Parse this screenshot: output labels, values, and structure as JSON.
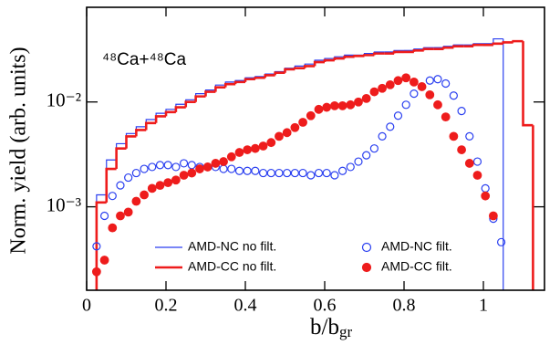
{
  "chart_data": {
    "type": "combo",
    "annotation": "⁴⁸Ca+⁴⁸Ca",
    "y_label": "Norm. yield (arb. units)",
    "x_label": "b/b",
    "x_label_sub": "gr",
    "xlim": [
      0,
      1.154
    ],
    "xticks": [
      0,
      0.2,
      0.4,
      0.6,
      0.8,
      1
    ],
    "ylim": [
      0.00016,
      0.08
    ],
    "log_y": true,
    "yticks": [
      {
        "value": 0.001,
        "label": "10⁻³"
      },
      {
        "value": 0.01,
        "label": "10⁻²"
      }
    ],
    "series": [
      {
        "name": "AMD-NC no filt.",
        "type": "step",
        "color": "#2a3ff0",
        "width": 1.2,
        "bins": [
          0.025,
          0.05,
          0.075,
          0.1,
          0.125,
          0.15,
          0.175,
          0.2,
          0.225,
          0.25,
          0.275,
          0.3,
          0.325,
          0.35,
          0.375,
          0.4,
          0.425,
          0.45,
          0.475,
          0.5,
          0.525,
          0.55,
          0.575,
          0.6,
          0.625,
          0.65,
          0.675,
          0.7,
          0.725,
          0.75,
          0.775,
          0.8,
          0.825,
          0.85,
          0.875,
          0.9,
          0.925,
          0.95,
          0.975,
          1.0,
          1.025,
          1.05
        ],
        "values": [
          0.0013,
          0.0028,
          0.004,
          0.005,
          0.0058,
          0.0068,
          0.0078,
          0.0085,
          0.0095,
          0.0105,
          0.012,
          0.013,
          0.0145,
          0.0155,
          0.016,
          0.017,
          0.0175,
          0.0185,
          0.0195,
          0.021,
          0.022,
          0.023,
          0.025,
          0.026,
          0.027,
          0.028,
          0.028,
          0.029,
          0.03,
          0.03,
          0.031,
          0.031,
          0.032,
          0.033,
          0.033,
          0.034,
          0.035,
          0.035,
          0.036,
          0.036,
          0.04
        ]
      },
      {
        "name": "AMD-CC no filt.",
        "type": "step",
        "color": "#ee1c1c",
        "width": 2.6,
        "bins": [
          0.025,
          0.05,
          0.075,
          0.1,
          0.125,
          0.15,
          0.175,
          0.2,
          0.225,
          0.25,
          0.275,
          0.3,
          0.325,
          0.35,
          0.375,
          0.4,
          0.425,
          0.45,
          0.475,
          0.5,
          0.525,
          0.55,
          0.575,
          0.6,
          0.625,
          0.65,
          0.675,
          0.7,
          0.725,
          0.75,
          0.775,
          0.8,
          0.825,
          0.85,
          0.875,
          0.9,
          0.925,
          0.95,
          0.975,
          1.0,
          1.025,
          1.05,
          1.075,
          1.1,
          1.125
        ],
        "values": [
          0.0011,
          0.0023,
          0.0036,
          0.0047,
          0.0054,
          0.0063,
          0.0073,
          0.008,
          0.0089,
          0.01,
          0.0113,
          0.0125,
          0.0138,
          0.0148,
          0.0155,
          0.0165,
          0.017,
          0.018,
          0.019,
          0.0205,
          0.021,
          0.022,
          0.024,
          0.025,
          0.026,
          0.027,
          0.0275,
          0.028,
          0.029,
          0.029,
          0.03,
          0.03,
          0.031,
          0.032,
          0.032,
          0.033,
          0.034,
          0.034,
          0.035,
          0.035,
          0.036,
          0.037,
          0.038,
          0.006
        ]
      },
      {
        "name": "AMD-NC filt.",
        "type": "scatter",
        "marker": "open",
        "color": "#2a3ff0",
        "x": [
          0.025,
          0.045,
          0.065,
          0.085,
          0.105,
          0.125,
          0.145,
          0.165,
          0.185,
          0.205,
          0.225,
          0.245,
          0.265,
          0.285,
          0.305,
          0.325,
          0.345,
          0.365,
          0.385,
          0.405,
          0.425,
          0.445,
          0.465,
          0.485,
          0.505,
          0.525,
          0.545,
          0.565,
          0.585,
          0.605,
          0.625,
          0.645,
          0.665,
          0.685,
          0.705,
          0.725,
          0.745,
          0.765,
          0.785,
          0.805,
          0.825,
          0.845,
          0.865,
          0.885,
          0.905,
          0.925,
          0.945,
          0.965,
          0.985,
          1.005,
          1.025,
          1.045
        ],
        "values": [
          0.00042,
          0.00082,
          0.00127,
          0.0016,
          0.0019,
          0.0021,
          0.0023,
          0.0024,
          0.0025,
          0.0025,
          0.0024,
          0.0026,
          0.0025,
          0.0024,
          0.0024,
          0.0024,
          0.0023,
          0.0023,
          0.0022,
          0.0022,
          0.0022,
          0.0021,
          0.0021,
          0.0021,
          0.0021,
          0.0021,
          0.0021,
          0.002,
          0.0021,
          0.0021,
          0.002,
          0.0022,
          0.0024,
          0.0027,
          0.0031,
          0.0036,
          0.0047,
          0.0058,
          0.0074,
          0.0094,
          0.012,
          0.014,
          0.016,
          0.0165,
          0.015,
          0.0115,
          0.0082,
          0.0047,
          0.0027,
          0.0015,
          0.00077,
          0.00046
        ]
      },
      {
        "name": "AMD-CC filt.",
        "type": "scatter",
        "marker": "filled",
        "color": "#ee1c1c",
        "x": [
          0.025,
          0.045,
          0.065,
          0.085,
          0.105,
          0.125,
          0.145,
          0.165,
          0.185,
          0.205,
          0.225,
          0.245,
          0.265,
          0.285,
          0.305,
          0.325,
          0.345,
          0.365,
          0.385,
          0.405,
          0.425,
          0.445,
          0.465,
          0.485,
          0.505,
          0.525,
          0.545,
          0.565,
          0.585,
          0.605,
          0.625,
          0.645,
          0.665,
          0.685,
          0.705,
          0.725,
          0.745,
          0.765,
          0.785,
          0.805,
          0.825,
          0.845,
          0.865,
          0.885,
          0.905,
          0.925,
          0.945,
          0.965,
          0.985,
          1.005,
          1.025
        ],
        "values": [
          0.00024,
          0.00031,
          0.00063,
          0.00082,
          0.00089,
          0.00113,
          0.0013,
          0.0015,
          0.0016,
          0.0017,
          0.0018,
          0.002,
          0.0021,
          0.0023,
          0.0024,
          0.0026,
          0.0027,
          0.003,
          0.0033,
          0.0035,
          0.0036,
          0.0038,
          0.0041,
          0.0047,
          0.0051,
          0.0057,
          0.0064,
          0.0074,
          0.0085,
          0.0089,
          0.0092,
          0.0092,
          0.0094,
          0.01,
          0.0108,
          0.0125,
          0.0135,
          0.0146,
          0.016,
          0.017,
          0.0155,
          0.014,
          0.0117,
          0.0094,
          0.0072,
          0.0047,
          0.0035,
          0.0026,
          0.002,
          0.00127,
          0.00082
        ]
      }
    ]
  }
}
